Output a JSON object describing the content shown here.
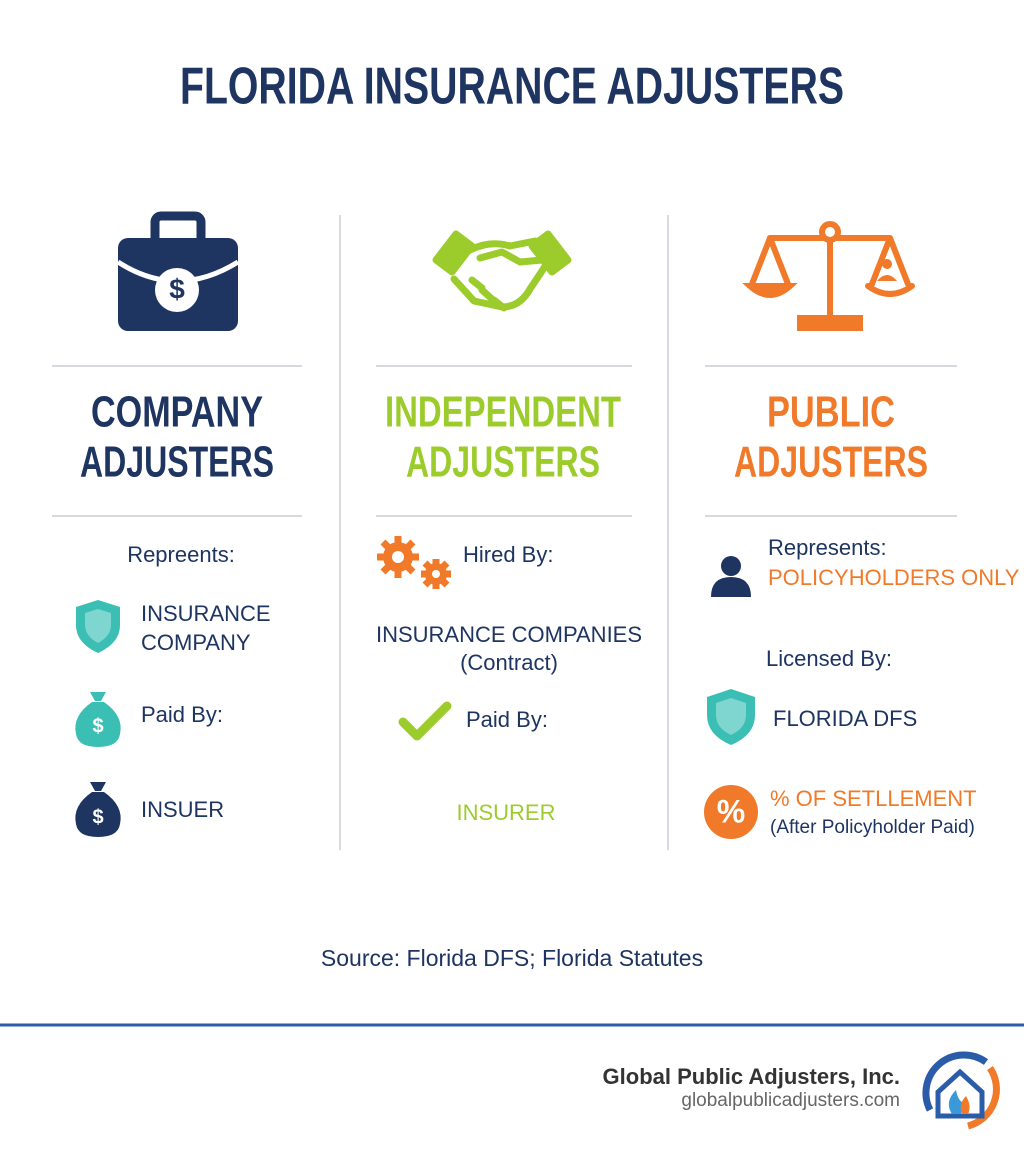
{
  "title": "FLORIDA INSURANCE ADJUSTERS",
  "columns": [
    {
      "heading": [
        "COMPANY",
        "ADJUSTERS"
      ],
      "icon_symbol": "$",
      "represents_label": "Repreents:",
      "represents_value": [
        "INSURANCE",
        "COMPANY"
      ],
      "paid_label": "Paid By:",
      "paid_symbol": "$",
      "paid_value": "INSUER",
      "paid_value_symbol": "$"
    },
    {
      "heading": [
        "INDEPENDENT",
        "ADJUSTERS"
      ],
      "hired_label": "Hired By:",
      "hired_value": "INSURANCE COMPANIES",
      "hired_note": "(Contract)",
      "paid_label": "Paid By:",
      "paid_value": "INSURER"
    },
    {
      "heading": [
        "PUBLIC",
        "ADJUSTERS"
      ],
      "represents_label": "Represents:",
      "represents_value": "POLICYHOLDERS ONLY",
      "licensed_label": "Licensed By:",
      "licensed_value": "FLORIDA DFS",
      "fee_symbol": "%",
      "fee_value": "% OF SETLLEMENT",
      "fee_note": "(After Policyholder Paid)"
    }
  ],
  "source": "Source: Florida DFS; Florida Statutes",
  "footer": {
    "company": "Global Public Adjusters, Inc.",
    "website": "globalpublicadjusters.com"
  }
}
